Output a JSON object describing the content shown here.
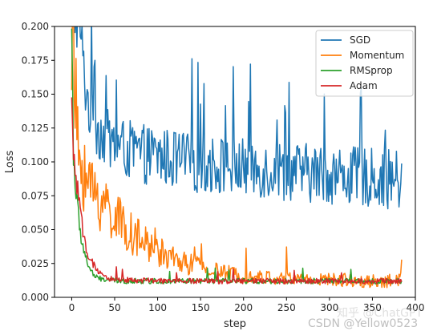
{
  "chart_data": {
    "type": "line",
    "xlabel": "step",
    "ylabel": "Loss",
    "xlim": [
      -20,
      400
    ],
    "ylim": [
      0,
      0.2
    ],
    "xticks": [
      0,
      50,
      100,
      150,
      200,
      250,
      300,
      350,
      400
    ],
    "yticks": [
      0.0,
      0.025,
      0.05,
      0.075,
      0.1,
      0.125,
      0.15,
      0.175,
      0.2
    ],
    "xtick_labels": [
      "0",
      "50",
      "100",
      "150",
      "200",
      "250",
      "300",
      "350",
      "400"
    ],
    "ytick_labels": [
      "0.000",
      "0.025",
      "0.050",
      "0.075",
      "0.100",
      "0.125",
      "0.150",
      "0.175",
      "0.200"
    ],
    "grid": false,
    "legend_position": "top-right",
    "steps": 384,
    "series": [
      {
        "name": "SGD",
        "color": "#1f77b4",
        "x": [
          0,
          5,
          10,
          15,
          20,
          30,
          40,
          50,
          60,
          70,
          80,
          90,
          100,
          110,
          120,
          130,
          135,
          140,
          150,
          160,
          170,
          180,
          190,
          200,
          210,
          220,
          230,
          240,
          250,
          260,
          270,
          280,
          290,
          300,
          310,
          320,
          330,
          340,
          350,
          360,
          370,
          380,
          384
        ],
        "y": [
          0.21,
          0.205,
          0.2,
          0.16,
          0.14,
          0.125,
          0.118,
          0.112,
          0.11,
          0.108,
          0.106,
          0.105,
          0.104,
          0.103,
          0.102,
          0.101,
          0.1,
          0.1,
          0.099,
          0.098,
          0.098,
          0.097,
          0.096,
          0.096,
          0.095,
          0.095,
          0.094,
          0.094,
          0.093,
          0.093,
          0.092,
          0.092,
          0.091,
          0.091,
          0.09,
          0.09,
          0.089,
          0.089,
          0.088,
          0.088,
          0.087,
          0.087,
          0.08
        ],
        "noise": 0.022
      },
      {
        "name": "Momentum",
        "color": "#ff7f0e",
        "x": [
          0,
          3,
          6,
          10,
          15,
          20,
          30,
          40,
          50,
          60,
          70,
          80,
          90,
          100,
          110,
          120,
          130,
          140,
          150,
          160,
          170,
          180,
          190,
          200,
          220,
          240,
          260,
          280,
          300,
          320,
          340,
          360,
          380,
          384
        ],
        "y": [
          0.21,
          0.16,
          0.12,
          0.1,
          0.09,
          0.082,
          0.075,
          0.068,
          0.06,
          0.052,
          0.047,
          0.042,
          0.038,
          0.034,
          0.031,
          0.028,
          0.026,
          0.024,
          0.022,
          0.02,
          0.019,
          0.018,
          0.017,
          0.016,
          0.015,
          0.014,
          0.014,
          0.013,
          0.013,
          0.013,
          0.012,
          0.012,
          0.012,
          0.024
        ],
        "noise": 0.01
      },
      {
        "name": "RMSprop",
        "color": "#2ca02c",
        "x": [
          0,
          2,
          4,
          6,
          8,
          10,
          14,
          18,
          22,
          26,
          30,
          40,
          60,
          100,
          150,
          200,
          250,
          300,
          350,
          384
        ],
        "y": [
          0.2,
          0.11,
          0.085,
          0.07,
          0.058,
          0.048,
          0.035,
          0.026,
          0.02,
          0.016,
          0.014,
          0.013,
          0.012,
          0.012,
          0.012,
          0.012,
          0.012,
          0.012,
          0.012,
          0.012
        ],
        "noise": 0.004
      },
      {
        "name": "Adam",
        "color": "#d62728",
        "x": [
          0,
          2,
          4,
          6,
          8,
          10,
          14,
          18,
          22,
          26,
          30,
          35,
          40,
          60,
          100,
          150,
          200,
          250,
          300,
          350,
          384
        ],
        "y": [
          0.135,
          0.11,
          0.095,
          0.082,
          0.07,
          0.06,
          0.045,
          0.035,
          0.028,
          0.023,
          0.019,
          0.016,
          0.014,
          0.013,
          0.012,
          0.012,
          0.012,
          0.012,
          0.012,
          0.012,
          0.012
        ],
        "noise": 0.004
      }
    ]
  },
  "watermark": {
    "text": "CSDN @Yellow0523",
    "faint_text": "知乎 @ChatGPT"
  }
}
